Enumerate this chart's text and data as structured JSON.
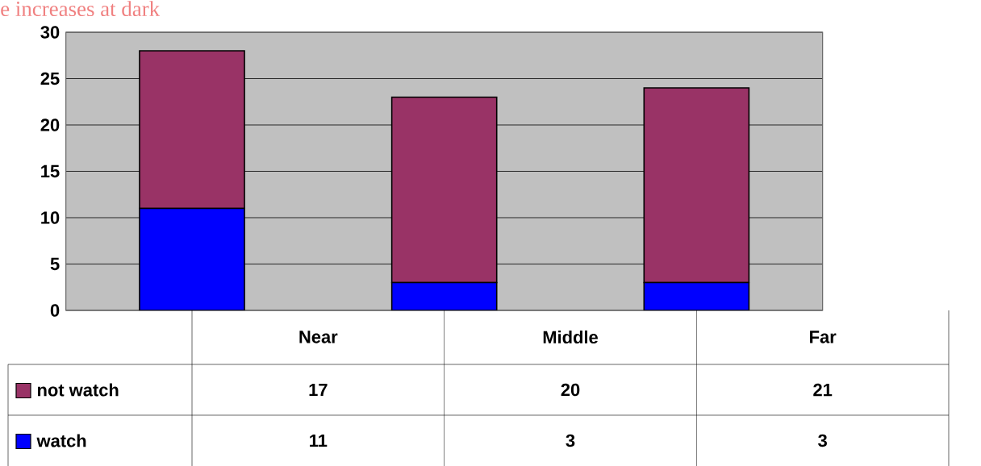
{
  "chart_data": {
    "type": "bar",
    "title": "e increases at dark",
    "stacked": true,
    "categories": [
      "Near",
      "Middle",
      "Far"
    ],
    "series": [
      {
        "name": "watch",
        "color": "#0000ff",
        "values": [
          11,
          3,
          3
        ]
      },
      {
        "name": "not watch",
        "color": "#993366",
        "values": [
          17,
          20,
          21
        ]
      }
    ],
    "ylim": [
      0,
      30
    ],
    "yticks": [
      0,
      5,
      10,
      15,
      20,
      25,
      30
    ],
    "grid": "y",
    "legend": "bottom left",
    "data_labels": true
  }
}
